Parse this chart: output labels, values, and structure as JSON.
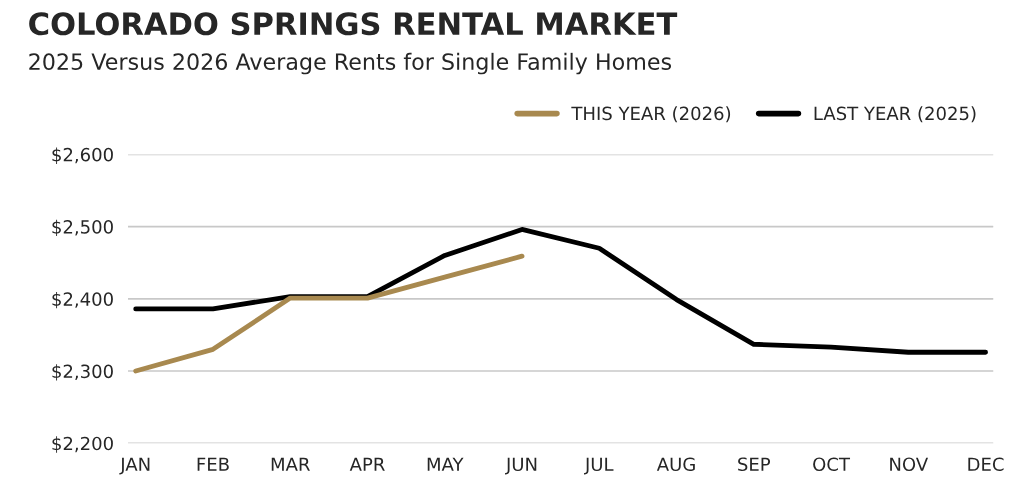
{
  "chart_data": {
    "type": "line",
    "title": "COLORADO SPRINGS RENTAL MARKET",
    "subtitle": "2025 Versus 2026 Average Rents for Single Family Homes",
    "categories": [
      "JAN",
      "FEB",
      "MAR",
      "APR",
      "MAY",
      "JUN",
      "JUL",
      "AUG",
      "SEP",
      "OCT",
      "NOV",
      "DEC"
    ],
    "series": [
      {
        "name": "THIS YEAR (2026)",
        "color": "#a8894f",
        "values": [
          2300,
          2330,
          2401,
          2401,
          2430,
          2459,
          null,
          null,
          null,
          null,
          null,
          null
        ]
      },
      {
        "name": "LAST YEAR (2025)",
        "color": "#000000",
        "values": [
          2386,
          2386,
          2403,
          2403,
          2460,
          2496,
          2470,
          2399,
          2337,
          2333,
          2326,
          2326
        ]
      }
    ],
    "ylim": [
      2200,
      2600
    ],
    "yticks": [
      {
        "value": 2200,
        "label": "$2,200"
      },
      {
        "value": 2300,
        "label": "$2,300"
      },
      {
        "value": 2400,
        "label": "$2,400"
      },
      {
        "value": 2500,
        "label": "$2,500"
      },
      {
        "value": 2600,
        "label": "$2,600"
      }
    ],
    "grid": "y",
    "legend": "top right",
    "marker": "none",
    "line_style": "solid"
  }
}
